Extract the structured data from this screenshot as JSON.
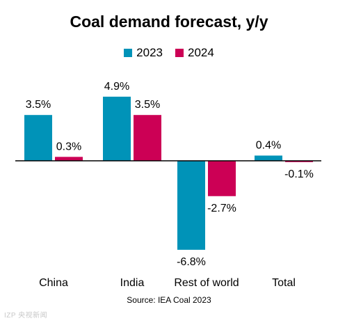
{
  "chart_data": {
    "type": "bar",
    "title": "Coal demand forecast, y/y",
    "categories": [
      "China",
      "India",
      "Rest of world",
      "Total"
    ],
    "series": [
      {
        "name": "2023",
        "color": "#0093b8",
        "values": [
          3.5,
          4.9,
          -6.8,
          0.4
        ],
        "labels": [
          "3.5%",
          "4.9%",
          "-6.8%",
          "0.4%"
        ]
      },
      {
        "name": "2024",
        "color": "#cc0055",
        "values": [
          0.3,
          3.5,
          -2.7,
          -0.1
        ],
        "labels": [
          "0.3%",
          "3.5%",
          "-2.7%",
          "-0.1%"
        ]
      }
    ],
    "ylim": [
      -7.2,
      5.4
    ],
    "grid": false,
    "legend": "top"
  },
  "source": "Source: IEA Coal 2023",
  "watermark": "IZP 央视新闻"
}
